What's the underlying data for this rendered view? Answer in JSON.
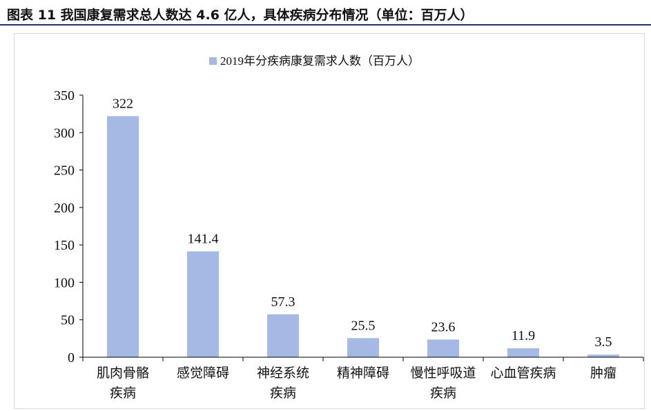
{
  "header": {
    "title": "图表 11 我国康复需求总人数达 4.6 亿人，具体疾病分布情况（单位：百万人）"
  },
  "colors": {
    "bar": "#a4b9e3",
    "axis": "#000000",
    "title_rule": "#1f3864"
  },
  "chart_data": {
    "type": "bar",
    "categories": [
      [
        "肌肉骨骼",
        "疾病"
      ],
      [
        "感觉障碍"
      ],
      [
        "神经系统",
        "疾病"
      ],
      [
        "精神障碍"
      ],
      [
        "慢性呼吸道",
        "疾病"
      ],
      [
        "心血管疾病"
      ],
      [
        "肿瘤"
      ]
    ],
    "series": [
      {
        "name": "2019年分疾病康复需求人数（百万人）",
        "values": [
          322,
          141.4,
          57.3,
          25.5,
          23.6,
          11.9,
          3.5
        ],
        "labels": [
          "322",
          "141.4",
          "57.3",
          "25.5",
          "23.6",
          "11.9",
          "3.5"
        ]
      }
    ],
    "ylim": [
      0,
      350
    ],
    "yticks": [
      0,
      50,
      100,
      150,
      200,
      250,
      300,
      350
    ],
    "legend": "top-center",
    "grid": false,
    "xlabel": "",
    "ylabel": ""
  }
}
